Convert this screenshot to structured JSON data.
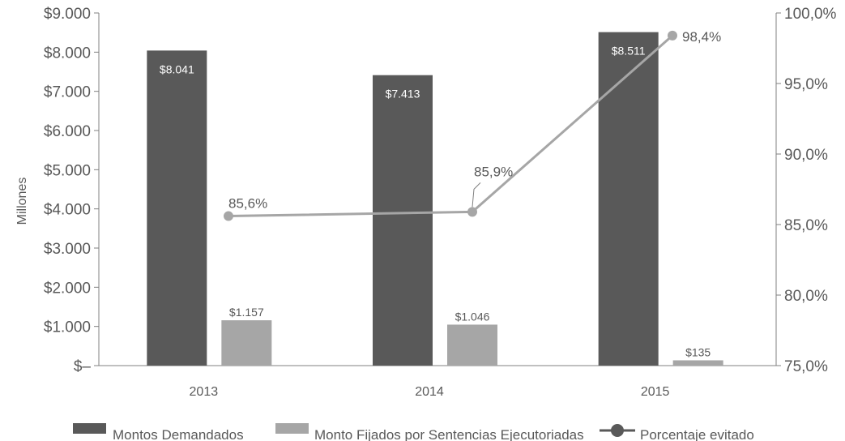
{
  "chart_data": {
    "type": "bar",
    "categories": [
      "2013",
      "2014",
      "2015"
    ],
    "series": [
      {
        "name": "Montos Demandados",
        "type": "bar",
        "axis": "left",
        "color": "#595959",
        "values": [
          8041,
          7413,
          8511
        ],
        "labels": [
          "$8.041",
          "$7.413",
          "$8.511"
        ]
      },
      {
        "name": "Monto Fijados por Sentencias Ejecutoriadas",
        "type": "bar",
        "axis": "left",
        "color": "#a6a6a6",
        "values": [
          1157,
          1046,
          135
        ],
        "labels": [
          "$1.157",
          "$1.046",
          "$135"
        ]
      },
      {
        "name": "Porcentaje evitado",
        "type": "line",
        "axis": "right",
        "color": "#a6a6a6",
        "values": [
          85.6,
          85.9,
          98.4
        ],
        "labels": [
          "85,6%",
          "85,9%",
          "98,4%"
        ]
      }
    ],
    "ylabel": "Millones",
    "ylim": [
      0,
      9000
    ],
    "y_ticks": [
      0,
      1000,
      2000,
      3000,
      4000,
      5000,
      6000,
      7000,
      8000,
      9000
    ],
    "y_tick_labels": [
      "$–",
      "$1.000",
      "$2.000",
      "$3.000",
      "$4.000",
      "$5.000",
      "$6.000",
      "$7.000",
      "$8.000",
      "$9.000"
    ],
    "y2lim": [
      75,
      100
    ],
    "y2_ticks": [
      75,
      80,
      85,
      90,
      95,
      100
    ],
    "y2_tick_labels": [
      "75,0%",
      "80,0%",
      "85,0%",
      "90,0%",
      "95,0%",
      "100,0%"
    ],
    "grid": false,
    "legend_position": "bottom"
  }
}
